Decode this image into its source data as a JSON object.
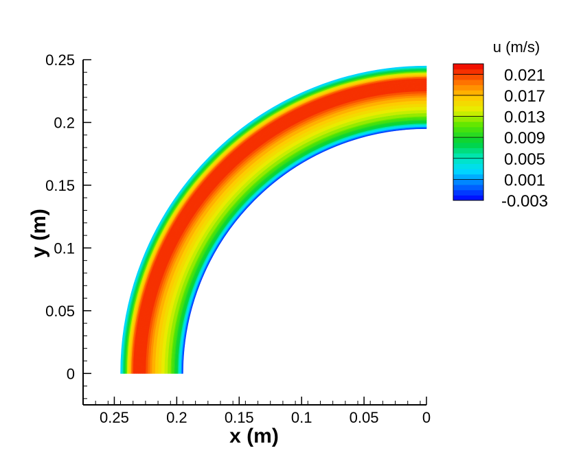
{
  "chart_data": {
    "type": "heatmap",
    "title": "",
    "xlabel": "x  (m)",
    "ylabel": "y  (m)",
    "xlim": [
      0.275,
      0.0
    ],
    "ylim": [
      -0.025,
      0.25
    ],
    "x_reversed": true,
    "x_ticks": [
      "0.25",
      "0.2",
      "0.15",
      "0.1",
      "0.05",
      "0"
    ],
    "x_tick_values": [
      0.25,
      0.2,
      0.15,
      0.1,
      0.05,
      0.0
    ],
    "y_ticks": [
      "0",
      "0.05",
      "0.1",
      "0.15",
      "0.2",
      "0.25"
    ],
    "y_tick_values": [
      0.0,
      0.05,
      0.1,
      0.15,
      0.2,
      0.25
    ],
    "geometry": {
      "shape": "quarter-annulus",
      "center": [
        0.0,
        0.0
      ],
      "inner_radius": 0.195,
      "outer_radius": 0.245,
      "theta_range_deg": [
        0,
        90
      ]
    },
    "field": {
      "name": "u  (m/s)",
      "min": -0.003,
      "max": 0.023,
      "profile": {
        "description": "radial profile across channel, r from 0.195 (inner wall) to 0.245 (outer wall)",
        "r": [
          0.195,
          0.197,
          0.2,
          0.205,
          0.21,
          0.215,
          0.22,
          0.225,
          0.23,
          0.235,
          0.239,
          0.242,
          0.245
        ],
        "u": [
          -0.003,
          0.002,
          0.008,
          0.012,
          0.014,
          0.016,
          0.018,
          0.021,
          0.022,
          0.021,
          0.015,
          0.008,
          0.002
        ]
      }
    },
    "colorbar": {
      "title": "u  (m/s)",
      "labels": [
        "0.021",
        "0.017",
        "0.013",
        "0.009",
        "0.005",
        "0.001",
        "-0.003"
      ],
      "label_values": [
        0.021,
        0.017,
        0.013,
        0.009,
        0.005,
        0.001,
        -0.003
      ],
      "range": [
        -0.003,
        0.023
      ],
      "levels": 26,
      "colormap": "rainbow"
    },
    "grid": false,
    "legend_position": "top-right"
  }
}
